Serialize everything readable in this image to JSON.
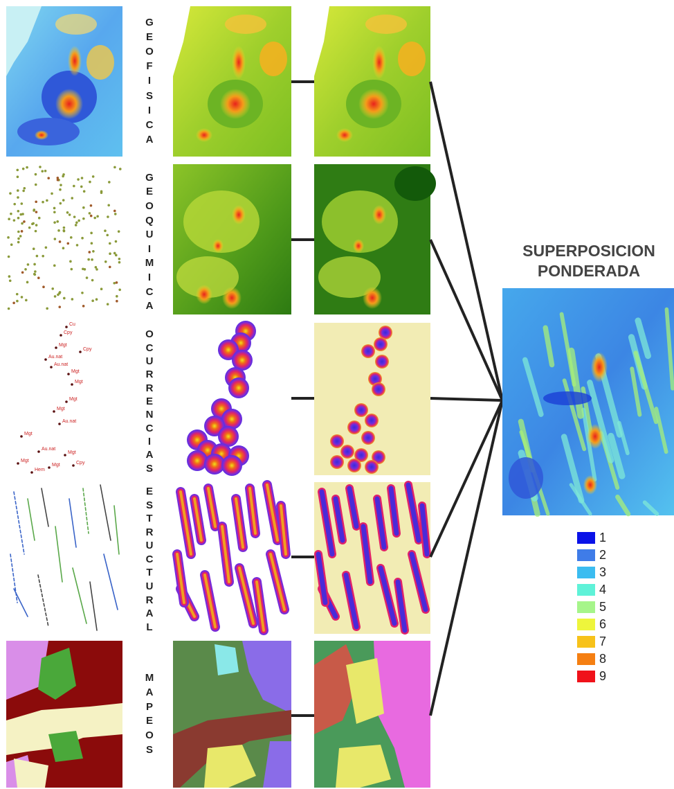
{
  "title": [
    "SUPERPOSICION",
    "PONDERADA"
  ],
  "rows": [
    {
      "name": "GEOFISICA",
      "letters": [
        "G",
        "E",
        "O",
        "F",
        "I",
        "S",
        "I",
        "C",
        "A"
      ]
    },
    {
      "name": "GEOQUIMICA",
      "letters": [
        "G",
        "E",
        "O",
        "Q",
        "U",
        "I",
        "M",
        "I",
        "C",
        "A"
      ]
    },
    {
      "name": "OCURRENCIAS",
      "letters": [
        "O",
        "C",
        "U",
        "R",
        "R",
        "E",
        "N",
        "C",
        "I",
        "A",
        "S"
      ]
    },
    {
      "name": "ESTRUCTURAL",
      "letters": [
        "E",
        "S",
        "T",
        "R",
        "U",
        "C",
        "T",
        "U",
        "R",
        "A",
        "L"
      ]
    },
    {
      "name": "MAPEOS",
      "letters": [
        "M",
        "A",
        "P",
        "E",
        "O",
        "S"
      ]
    }
  ],
  "point_labels": [
    "Cu",
    "Cpy",
    "Mgt",
    "Cpy",
    "Au.nat",
    "Au.nat",
    "Mgt",
    "Mgt",
    "Mgt",
    "Mgt",
    "Au.nat",
    "Mgt",
    "Au.nat",
    "Mgt",
    "Mgt",
    "Mgt",
    "Hem",
    "Cpy"
  ],
  "legend": [
    {
      "label": "1",
      "color": "#0a12e8"
    },
    {
      "label": "2",
      "color": "#3f7ce8"
    },
    {
      "label": "3",
      "color": "#3bbcf0"
    },
    {
      "label": "4",
      "color": "#5ff2d8"
    },
    {
      "label": "5",
      "color": "#a6f58a"
    },
    {
      "label": "6",
      "color": "#eef53c"
    },
    {
      "label": "7",
      "color": "#f7c21a"
    },
    {
      "label": "8",
      "color": "#f57f12"
    },
    {
      "label": "9",
      "color": "#f0121a"
    }
  ]
}
